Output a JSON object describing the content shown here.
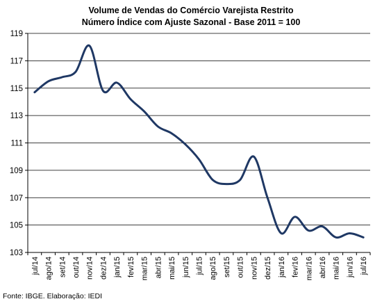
{
  "chart_data": {
    "type": "line",
    "title": "Volume de Vendas do Comércio Varejista Restrito",
    "subtitle": "Número Índice com Ajuste Sazonal - Base 2011 = 100",
    "xlabel": "",
    "ylabel": "",
    "ylim": [
      103,
      119
    ],
    "yticks": [
      103,
      105,
      107,
      109,
      111,
      113,
      115,
      117,
      119
    ],
    "grid": true,
    "legend": "none",
    "categories": [
      "jul/14",
      "ago/14",
      "set/14",
      "out/14",
      "nov/14",
      "dez/14",
      "jan/15",
      "fev/15",
      "mar/15",
      "abr/15",
      "mai/15",
      "jun/15",
      "jul/15",
      "ago/15",
      "set/15",
      "out/15",
      "nov/15",
      "dez/15",
      "jan/16",
      "fev/16",
      "mar/16",
      "abr/16",
      "mai/16",
      "jun/16",
      "jul/16"
    ],
    "series": [
      {
        "values": [
          114.7,
          115.5,
          115.8,
          116.2,
          118.1,
          114.8,
          115.4,
          114.2,
          113.3,
          112.2,
          111.7,
          110.9,
          109.8,
          108.3,
          108.0,
          108.3,
          110.0,
          107.0,
          104.4,
          105.6,
          104.6,
          104.9,
          104.1,
          104.4,
          104.1
        ],
        "color": "#1f3864"
      }
    ],
    "source": "Fonte: IBGE. Elaboração: IEDI"
  }
}
